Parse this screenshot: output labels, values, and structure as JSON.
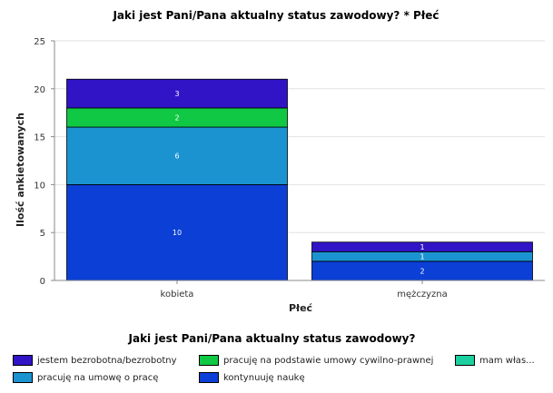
{
  "chart_data": {
    "type": "bar",
    "stacked": true,
    "title": "Jaki jest Pani/Pana aktualny status zawodowy? * Płeć",
    "xlabel": "Płeć",
    "ylabel": "Ilość ankietowanych",
    "categories": [
      "kobieta",
      "mężczyzna"
    ],
    "ylim": [
      0,
      25
    ],
    "yticks": [
      0,
      5,
      10,
      15,
      20,
      25
    ],
    "grid": true,
    "series": [
      {
        "name": "kontynuuję naukę",
        "color": "#0b3fd6",
        "values": [
          10,
          2
        ]
      },
      {
        "name": "pracuję na umowę o pracę",
        "color": "#1b93d0",
        "values": [
          6,
          1
        ]
      },
      {
        "name": "pracuję na podstawie umowy cywilno-prawnej",
        "color": "#10c843",
        "values": [
          2,
          0
        ]
      },
      {
        "name": "mam własną działalność",
        "color": "#1ccf9e",
        "values": [
          0,
          0
        ]
      },
      {
        "name": "jestem bezrobotna/bezrobotny",
        "color": "#3014c6",
        "values": [
          3,
          1
        ]
      }
    ],
    "legend_title": "Jaki jest Pani/Pana aktualny status zawodowy?",
    "legend_placement": "bottom"
  },
  "legend_labels": {
    "item1": "jestem bezrobotna/bezrobotny",
    "item2": "pracuję na podstawie umowy cywilno-prawnej",
    "item3": "mam włas...",
    "item4": "pracuję na umowę o pracę",
    "item5": "kontynuuję naukę"
  }
}
